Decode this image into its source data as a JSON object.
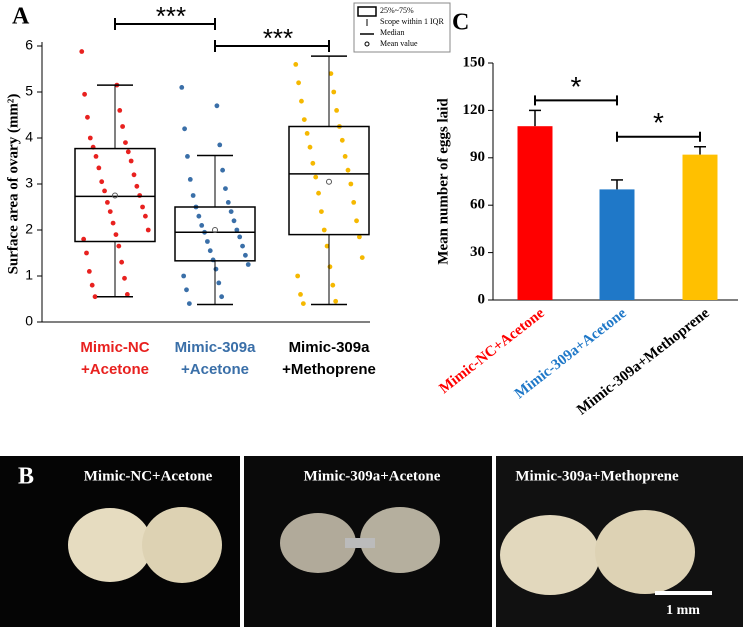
{
  "chart_data": [
    {
      "type": "box",
      "panel_label": "A",
      "ylabel": "Surface area of ovary (mm²)",
      "ylim": [
        0,
        6
      ],
      "yticks": [
        0,
        1,
        2,
        3,
        4,
        5,
        6
      ],
      "categories": [
        [
          "Mimic-NC",
          "+Acetone"
        ],
        [
          "Mimic-309a",
          "+Acetone"
        ],
        [
          "Mimic-309a",
          "+Methoprene"
        ]
      ],
      "legend": [
        "25%~75%",
        "Scope within 1 IQR",
        "Median",
        "Mean value"
      ],
      "annotations": [
        "***",
        "***"
      ],
      "boxes": [
        {
          "color": "#e8211f",
          "label_color": "#e8211f",
          "min": 0.55,
          "q1": 1.75,
          "median": 2.73,
          "q3": 3.77,
          "max": 5.15,
          "mean": 2.75,
          "points": [
            5.88,
            5.15,
            4.95,
            4.6,
            4.45,
            4.25,
            4.0,
            3.9,
            3.8,
            3.7,
            3.6,
            3.5,
            3.35,
            3.2,
            3.05,
            2.95,
            2.85,
            2.75,
            2.6,
            2.5,
            2.4,
            2.3,
            2.15,
            2.0,
            1.9,
            1.8,
            1.65,
            1.5,
            1.3,
            1.1,
            0.95,
            0.8,
            0.6,
            0.55
          ]
        },
        {
          "color": "#3a6fa8",
          "label_color": "#3a6fa8",
          "min": 0.38,
          "q1": 1.33,
          "median": 1.95,
          "q3": 2.5,
          "max": 3.62,
          "mean": 2.0,
          "points": [
            5.1,
            4.7,
            4.2,
            3.85,
            3.6,
            3.3,
            3.1,
            2.9,
            2.75,
            2.6,
            2.5,
            2.4,
            2.3,
            2.2,
            2.1,
            2.0,
            1.95,
            1.85,
            1.75,
            1.65,
            1.55,
            1.45,
            1.35,
            1.25,
            1.15,
            1.0,
            0.85,
            0.7,
            0.55,
            0.4
          ]
        },
        {
          "color": "#f5b800",
          "label_color": "#000000",
          "min": 0.38,
          "q1": 1.9,
          "median": 3.22,
          "q3": 4.25,
          "max": 5.78,
          "mean": 3.05,
          "points": [
            5.6,
            5.4,
            5.2,
            5.0,
            4.8,
            4.6,
            4.4,
            4.25,
            4.1,
            3.95,
            3.8,
            3.6,
            3.45,
            3.3,
            3.15,
            3.0,
            2.8,
            2.6,
            2.4,
            2.2,
            2.0,
            1.85,
            1.65,
            1.4,
            1.2,
            1.0,
            0.8,
            0.6,
            0.45,
            0.4
          ]
        }
      ]
    },
    {
      "type": "bar",
      "panel_label": "C",
      "ylabel": "Mean number of eggs laid",
      "ylim": [
        0,
        150
      ],
      "yticks": [
        0,
        30,
        60,
        90,
        120,
        150
      ],
      "categories": [
        "Mimic-NC+Acetone",
        "Mimic-309a+Acetone",
        "Mimic-309a+Methoprene"
      ],
      "values": [
        110,
        70,
        92
      ],
      "errors": [
        10,
        6,
        5
      ],
      "colors": [
        "#ff0000",
        "#1f78c8",
        "#ffc000"
      ],
      "label_colors": [
        "#ff0000",
        "#1f78c8",
        "#000000"
      ],
      "annotations": [
        "*",
        "*"
      ]
    }
  ],
  "panel_b": {
    "panel_label": "B",
    "labels": [
      "Mimic-NC+Acetone",
      "Mimic-309a+Acetone",
      "Mimic-309a+Methoprene"
    ],
    "scale_bar": "1 mm"
  }
}
